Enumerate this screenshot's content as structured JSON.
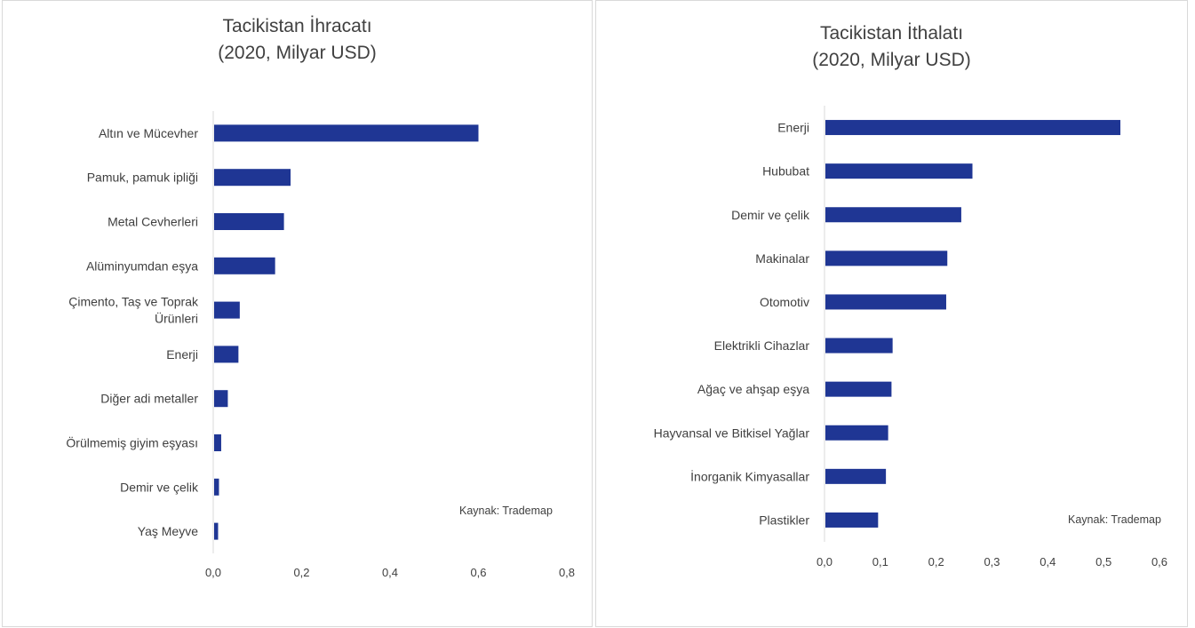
{
  "colors": {
    "bar": "#1f3694",
    "axis": "#d9d9d9",
    "text": "#404040"
  },
  "chart_data": [
    {
      "type": "bar",
      "orientation": "horizontal",
      "title": "Tacikistan İhracatı",
      "subtitle": "(2020, Milyar USD)",
      "categories": [
        "Altın ve Mücevher",
        "Pamuk, pamuk ipliği",
        "Metal Cevherleri",
        "Alüminyumdan eşya",
        "Çimento, Taş ve Toprak Ürünleri",
        "Enerji",
        "Diğer adi metaller",
        "Örülmemiş giyim eşyası",
        "Demir ve çelik",
        "Yaş Meyve"
      ],
      "category_lines": [
        [
          "Altın ve Mücevher"
        ],
        [
          "Pamuk, pamuk ipliği"
        ],
        [
          "Metal Cevherleri"
        ],
        [
          "Alüminyumdan eşya"
        ],
        [
          "Çimento, Taş ve Toprak",
          "Ürünleri"
        ],
        [
          "Enerji"
        ],
        [
          "Diğer adi metaller"
        ],
        [
          "Örülmemiş giyim eşyası"
        ],
        [
          "Demir ve çelik"
        ],
        [
          "Yaş Meyve"
        ]
      ],
      "values": [
        0.6,
        0.175,
        0.16,
        0.14,
        0.06,
        0.057,
        0.033,
        0.018,
        0.013,
        0.011
      ],
      "xlim": [
        0,
        0.8
      ],
      "xticks": [
        "0,0",
        "0,2",
        "0,4",
        "0,6",
        "0,8"
      ],
      "grid": false,
      "source_note": "Kaynak: Trademap"
    },
    {
      "type": "bar",
      "orientation": "horizontal",
      "title": "Tacikistan İthalatı",
      "subtitle": "(2020, Milyar USD)",
      "categories": [
        "Enerji",
        "Hububat",
        "Demir ve çelik",
        "Makinalar",
        "Otomotiv",
        "Elektrikli Cihazlar",
        "Ağaç ve ahşap eşya",
        "Hayvansal ve Bitkisel Yağlar",
        "İnorganik Kimyasallar",
        "Plastikler"
      ],
      "category_lines": [
        [
          "Enerji"
        ],
        [
          "Hububat"
        ],
        [
          "Demir ve çelik"
        ],
        [
          "Makinalar"
        ],
        [
          "Otomotiv"
        ],
        [
          "Elektrikli Cihazlar"
        ],
        [
          "Ağaç ve ahşap eşya"
        ],
        [
          "Hayvansal ve Bitkisel Yağlar"
        ],
        [
          "İnorganik Kimyasallar"
        ],
        [
          "Plastikler"
        ]
      ],
      "values": [
        0.53,
        0.265,
        0.245,
        0.22,
        0.218,
        0.122,
        0.12,
        0.114,
        0.11,
        0.096
      ],
      "xlim": [
        0,
        0.6
      ],
      "xticks": [
        "0,0",
        "0,1",
        "0,2",
        "0,3",
        "0,4",
        "0,5",
        "0,6"
      ],
      "grid": false,
      "source_note": "Kaynak: Trademap"
    }
  ]
}
